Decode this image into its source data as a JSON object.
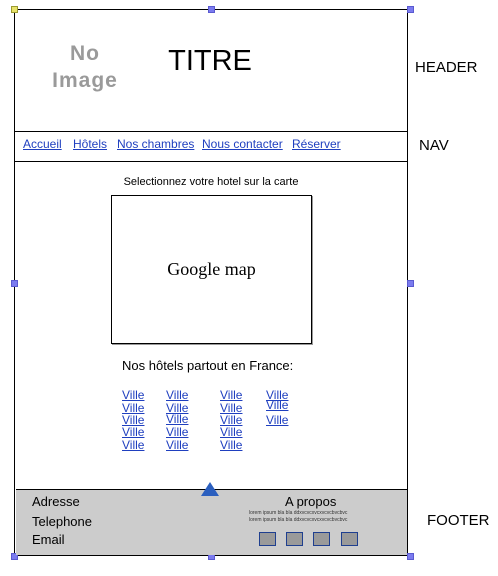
{
  "header": {
    "logo_placeholder_line1": "No",
    "logo_placeholder_line2": "Image",
    "title": "TITRE"
  },
  "nav": {
    "items": [
      {
        "label": "Accueil"
      },
      {
        "label": "Hôtels"
      },
      {
        "label": "Nos chambres"
      },
      {
        "label": "Nous contacter"
      },
      {
        "label": "Réserver"
      }
    ]
  },
  "main": {
    "map_instruction": "Selectionnez votre hotel sur la carte",
    "map_placeholder": "Google  map",
    "hotels_title": "Nos hôtels partout en France:",
    "city_link": "Ville"
  },
  "footer": {
    "address": "Adresse",
    "telephone": "Telephone",
    "email": "Email",
    "about_title": "A propos",
    "about_line1": "lorem ipsum bla bla ddxvcvcxvcxvcvcbvcbvc",
    "about_line2": "lorem ipsum bla bla ddxvcvcxvcxvcvcbvcbvc",
    "social_icon_count": 4
  },
  "annotations": {
    "header": "HEADER",
    "nav": "NAV",
    "footer": "FOOTER"
  },
  "colors": {
    "link": "#1f3fbf",
    "footer_bg": "#cccccc",
    "selection_handle": "#7b7bef",
    "arrow": "#2b5fbf"
  }
}
